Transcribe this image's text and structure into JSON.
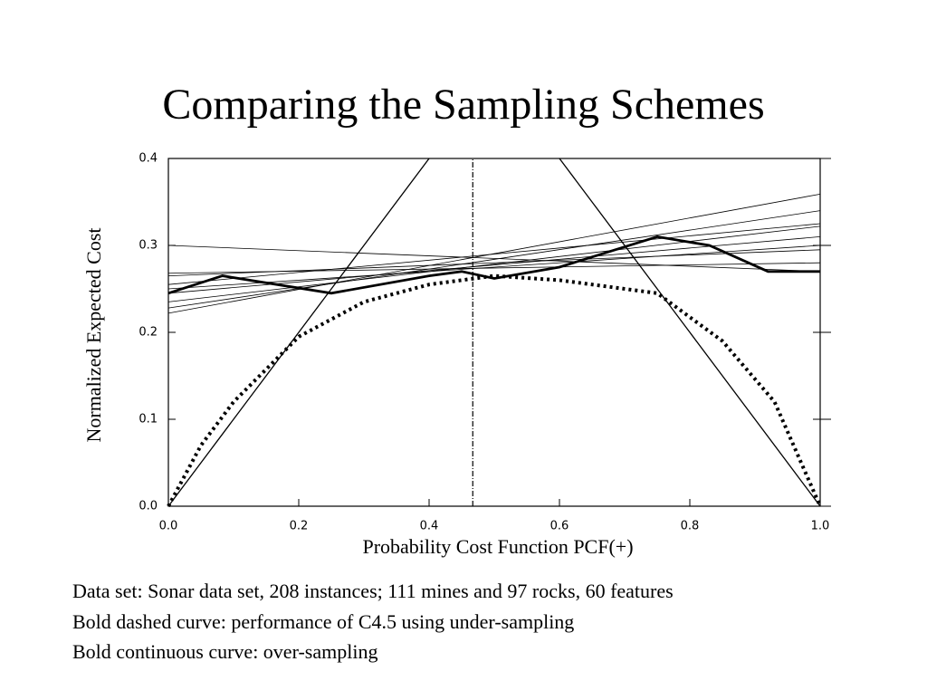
{
  "title": "Comparing the Sampling Schemes",
  "chart_data": {
    "type": "line",
    "xlabel": "Probability Cost Function PCF(+)",
    "ylabel": "Normalized Expected Cost",
    "xlim": [
      0,
      1
    ],
    "ylim": [
      0,
      0.4
    ],
    "xticks": [
      {
        "value": 0,
        "label": "0.0"
      },
      {
        "value": 0.2,
        "label": "0.2"
      },
      {
        "value": 0.4,
        "label": "0.4"
      },
      {
        "value": 0.6,
        "label": "0.6"
      },
      {
        "value": 0.8,
        "label": "0.8"
      },
      {
        "value": 1,
        "label": "1.0"
      }
    ],
    "yticks": [
      {
        "value": 0,
        "label": "0.0"
      },
      {
        "value": 0.1,
        "label": "0.1"
      },
      {
        "value": 0.2,
        "label": "0.2"
      },
      {
        "value": 0.3,
        "label": "0.3"
      },
      {
        "value": 0.4,
        "label": "0.4"
      }
    ],
    "series": [
      {
        "color": "#000",
        "width": 1.3,
        "x": [
          0,
          0.4
        ],
        "values": [
          0,
          0.4
        ]
      },
      {
        "color": "#000",
        "width": 1.3,
        "x": [
          0.6,
          1
        ],
        "values": [
          0.4,
          0
        ]
      },
      {
        "color": "#000",
        "width": 1.2,
        "dash": "6 2 1 2",
        "x": [
          0.467,
          0.467
        ],
        "values": [
          0,
          0.4
        ]
      },
      {
        "color": "#000",
        "width": 0.8,
        "x": [
          0,
          1
        ],
        "values": [
          0.3,
          0.27
        ]
      },
      {
        "color": "#000",
        "width": 0.8,
        "x": [
          0,
          1
        ],
        "values": [
          0.222,
          0.359
        ]
      },
      {
        "color": "#000",
        "width": 0.8,
        "x": [
          0,
          1
        ],
        "values": [
          0.228,
          0.34
        ]
      },
      {
        "color": "#000",
        "width": 0.8,
        "x": [
          0,
          1
        ],
        "values": [
          0.235,
          0.322
        ]
      },
      {
        "color": "#000",
        "width": 0.8,
        "x": [
          0,
          1
        ],
        "values": [
          0.245,
          0.31
        ]
      },
      {
        "color": "#000",
        "width": 0.8,
        "x": [
          0,
          1
        ],
        "values": [
          0.25,
          0.3
        ]
      },
      {
        "color": "#000",
        "width": 0.8,
        "x": [
          0,
          1
        ],
        "values": [
          0.255,
          0.325
        ]
      },
      {
        "color": "#000",
        "width": 0.8,
        "x": [
          0,
          1
        ],
        "values": [
          0.265,
          0.295
        ]
      },
      {
        "color": "#000",
        "width": 0.8,
        "x": [
          0,
          1
        ],
        "values": [
          0.268,
          0.28
        ]
      },
      {
        "color": "#000",
        "width": 2.8,
        "x": [
          0,
          0.083,
          0.25,
          0.4,
          0.45,
          0.5,
          0.6,
          0.75,
          0.83,
          0.92,
          1
        ],
        "values": [
          0.245,
          0.265,
          0.245,
          0.265,
          0.27,
          0.262,
          0.275,
          0.31,
          0.3,
          0.27,
          0.27
        ]
      },
      {
        "color": "#000",
        "width": 4,
        "dash": "3 4",
        "x": [
          0,
          0.05,
          0.1,
          0.2,
          0.3,
          0.4,
          0.5,
          0.6,
          0.75,
          0.85,
          0.93,
          1
        ],
        "values": [
          0,
          0.07,
          0.12,
          0.195,
          0.235,
          0.255,
          0.265,
          0.26,
          0.245,
          0.19,
          0.12,
          0
        ]
      }
    ]
  },
  "notes": [
    "Data set: Sonar data set, 208 instances; 111 mines and 97 rocks, 60 features",
    "Bold dashed curve: performance of C4.5 using under-sampling",
    "Bold continuous curve: over-sampling"
  ]
}
